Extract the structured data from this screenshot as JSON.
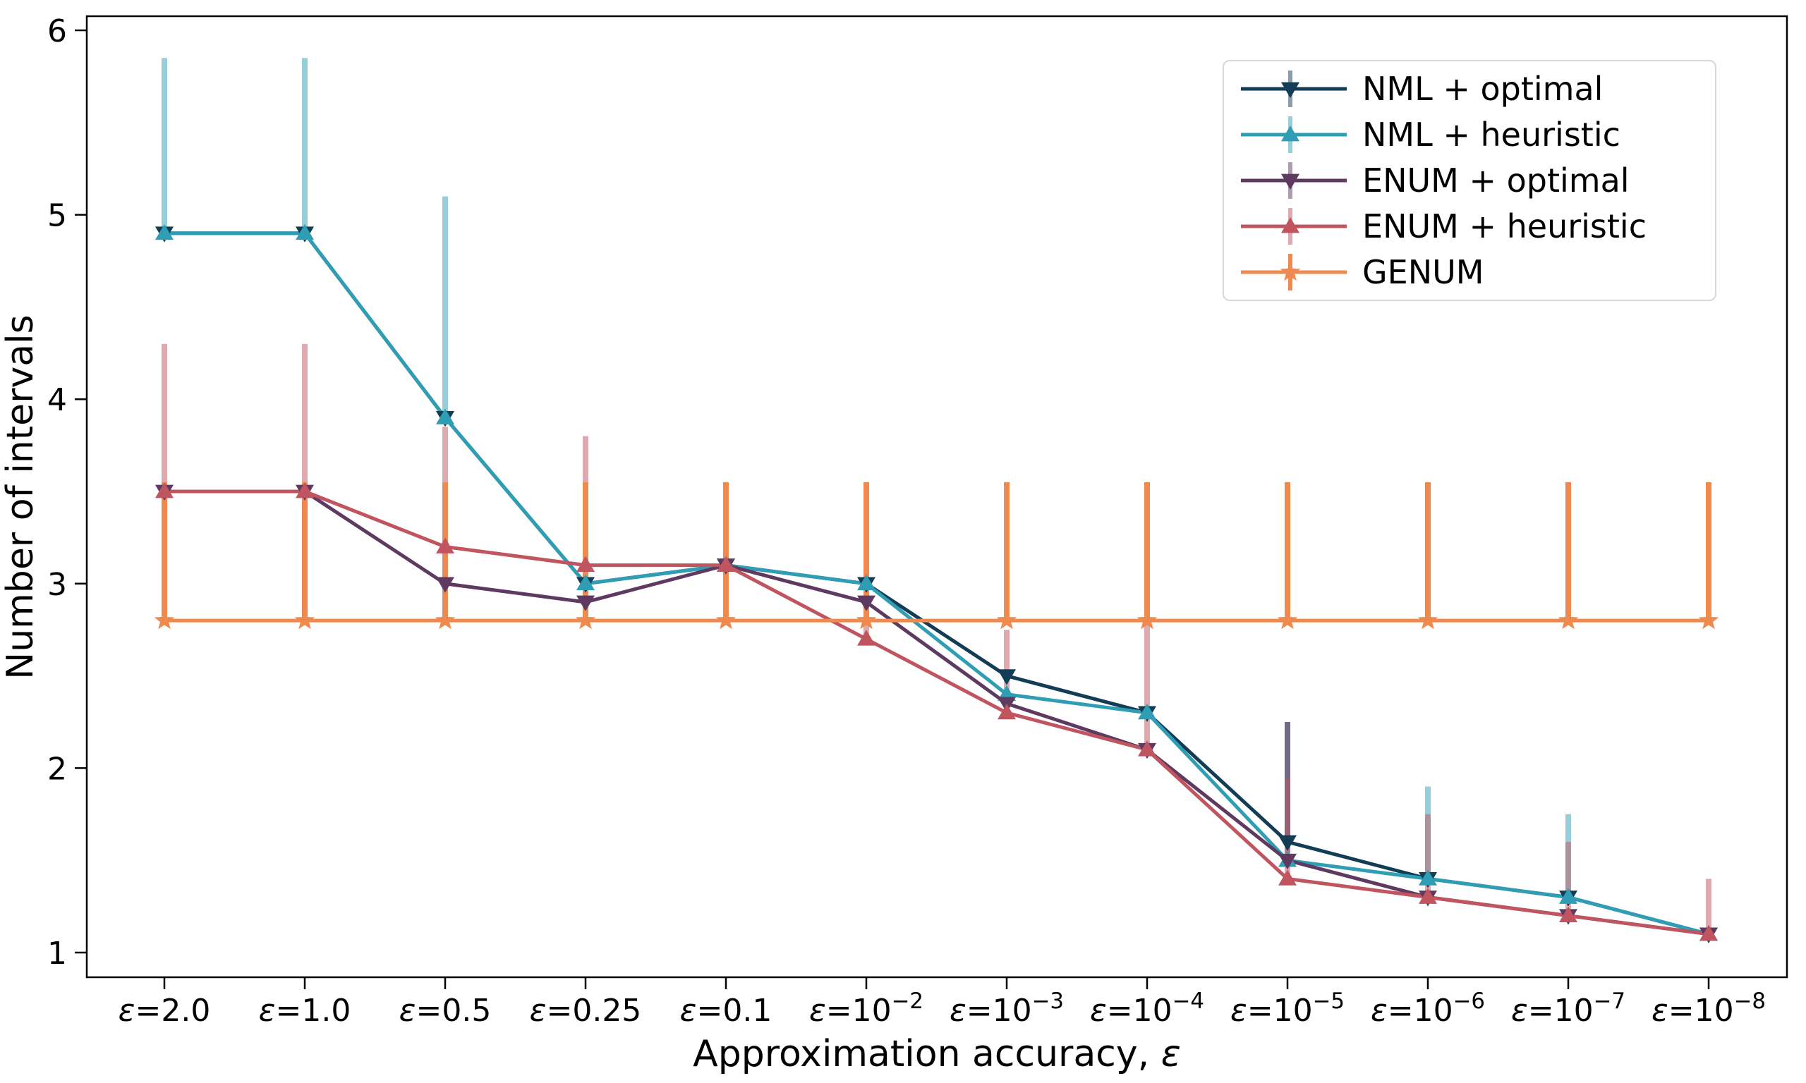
{
  "chart_data": {
    "type": "line",
    "title": "",
    "xlabel": "Approximation accuracy, ε",
    "ylabel": "Number of intervals",
    "categories": [
      "ε=2.0",
      "ε=1.0",
      "ε=0.5",
      "ε=0.25",
      "ε=0.1",
      "ε=10⁻²",
      "ε=10⁻³",
      "ε=10⁻⁴",
      "ε=10⁻⁵",
      "ε=10⁻⁶",
      "ε=10⁻⁷",
      "ε=10⁻⁸"
    ],
    "yticks": [
      1,
      2,
      3,
      4,
      5,
      6
    ],
    "ylim": [
      0.87,
      6.08
    ],
    "grid": false,
    "legend_position": "upper right",
    "error_bars": "upper-only, drawn in lighter shade of series color",
    "series": [
      {
        "name": "NML + optimal",
        "color": "#133c55",
        "marker": "triangle-down",
        "err_opacity": 0.5,
        "values": [
          4.9,
          4.9,
          3.9,
          3.0,
          3.1,
          3.0,
          2.5,
          2.3,
          1.6,
          1.4,
          1.3,
          1.1
        ],
        "err_top": [
          null,
          null,
          null,
          null,
          null,
          null,
          null,
          null,
          2.25,
          null,
          null,
          null
        ]
      },
      {
        "name": "NML + heuristic",
        "color": "#2f9eb4",
        "marker": "triangle-up",
        "err_opacity": 0.5,
        "values": [
          4.9,
          4.9,
          3.9,
          3.0,
          3.1,
          3.0,
          2.4,
          2.3,
          1.5,
          1.4,
          1.3,
          1.1
        ],
        "err_top": [
          5.85,
          5.85,
          5.1,
          null,
          null,
          null,
          null,
          null,
          null,
          1.9,
          1.75,
          null
        ]
      },
      {
        "name": "ENUM + optimal",
        "color": "#5e3a61",
        "marker": "triangle-down",
        "err_opacity": 0.5,
        "values": [
          3.5,
          3.5,
          3.0,
          2.9,
          3.1,
          2.9,
          2.35,
          2.1,
          1.5,
          1.3,
          1.2,
          1.1
        ],
        "err_top": [
          null,
          null,
          null,
          null,
          null,
          null,
          null,
          null,
          2.25,
          null,
          null,
          null
        ]
      },
      {
        "name": "ENUM + heuristic",
        "color": "#c05560",
        "marker": "triangle-up",
        "err_opacity": 0.5,
        "values": [
          3.5,
          3.5,
          3.2,
          3.1,
          3.1,
          2.7,
          2.3,
          2.1,
          1.4,
          1.3,
          1.2,
          1.1
        ],
        "err_top": [
          4.3,
          4.3,
          3.85,
          3.8,
          3.4,
          3.1,
          2.75,
          2.8,
          1.95,
          1.75,
          1.6,
          1.4
        ]
      },
      {
        "name": "GENUM",
        "color": "#ee8a4f",
        "marker": "star",
        "err_opacity": 1.0,
        "values": [
          2.8,
          2.8,
          2.8,
          2.8,
          2.8,
          2.8,
          2.8,
          2.8,
          2.8,
          2.8,
          2.8,
          2.8
        ],
        "err_top": [
          3.55,
          3.55,
          3.55,
          3.55,
          3.55,
          3.55,
          3.55,
          3.55,
          3.55,
          3.55,
          3.55,
          3.55
        ]
      }
    ]
  }
}
